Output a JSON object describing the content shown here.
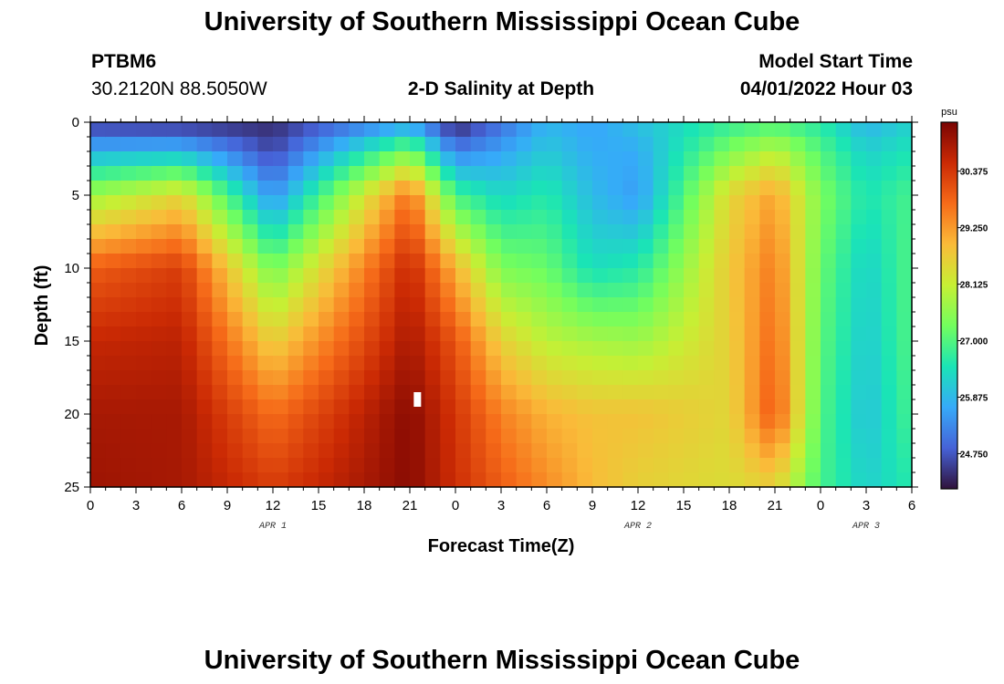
{
  "header": {
    "title": "University of Southern Mississippi Ocean Cube",
    "station_id": "PTBM6",
    "coordinates": "30.2120N  88.5050W",
    "plot_title": "2-D Salinity at Depth",
    "model_start_label": "Model Start Time",
    "model_start_value": "04/01/2022 Hour 03"
  },
  "footer": {
    "title": "University of Southern Mississippi Ocean Cube"
  },
  "chart_data": {
    "type": "heatmap",
    "title": "2-D Salinity at Depth",
    "xlabel": "Forecast Time(Z)",
    "ylabel": "Depth (ft)",
    "x_tick_labels": [
      "0",
      "3",
      "6",
      "9",
      "12",
      "15",
      "18",
      "21",
      "0",
      "3",
      "6",
      "9",
      "12",
      "15",
      "18",
      "21",
      "0",
      "3",
      "6"
    ],
    "x_range_hours": [
      0,
      54
    ],
    "date_labels": [
      {
        "text": "APR 1",
        "hour": 12
      },
      {
        "text": "APR 2",
        "hour": 36
      },
      {
        "text": "APR 3",
        "hour": 51
      }
    ],
    "y_ticks": [
      0,
      5,
      10,
      15,
      20,
      25
    ],
    "y_range_ft": [
      0,
      25
    ],
    "y_inverted": true,
    "colorbar": {
      "unit": "psu",
      "ticks": [
        "30.375",
        "29.250",
        "28.125",
        "27.000",
        "25.875",
        "24.750"
      ],
      "tick_values": [
        30.375,
        29.25,
        28.125,
        27.0,
        25.875,
        24.75
      ],
      "range": [
        24.05,
        31.35
      ],
      "colors": [
        "#30123b",
        "#4662d7",
        "#36aaf9",
        "#1ae4b6",
        "#72fe5e",
        "#c7ef34",
        "#fabb39",
        "#f66b19",
        "#cb2a04",
        "#7a0403"
      ]
    },
    "marker": {
      "hour": 21.5,
      "depth_ft": 19
    },
    "profiles_hours": [
      0,
      6,
      12,
      21,
      24,
      27,
      30,
      33,
      36,
      42,
      45,
      48,
      51,
      54
    ],
    "profiles_depths_ft": [
      0,
      2,
      5,
      10,
      15,
      20,
      25
    ],
    "profiles_psu": [
      [
        24.4,
        25.8,
        27.7,
        29.9,
        30.6,
        30.9,
        31.0
      ],
      [
        24.3,
        25.9,
        28.5,
        30.3,
        30.7,
        30.9,
        30.9
      ],
      [
        24.3,
        24.6,
        25.4,
        27.3,
        28.6,
        29.7,
        30.3
      ],
      [
        25.5,
        27.4,
        29.7,
        30.6,
        30.9,
        31.2,
        31.2
      ],
      [
        24.2,
        25.2,
        26.9,
        29.0,
        30.0,
        30.4,
        30.5
      ],
      [
        25.0,
        25.6,
        26.3,
        27.4,
        28.6,
        29.5,
        29.9
      ],
      [
        25.8,
        26.1,
        26.6,
        27.2,
        28.0,
        29.0,
        29.4
      ],
      [
        25.6,
        25.7,
        25.9,
        26.4,
        27.8,
        28.8,
        28.9
      ],
      [
        26.0,
        25.7,
        25.5,
        26.6,
        27.7,
        28.8,
        28.6
      ],
      [
        26.7,
        27.4,
        28.5,
        28.7,
        28.6,
        28.5,
        28.4
      ],
      [
        26.9,
        28.0,
        29.2,
        29.6,
        29.8,
        30.0,
        28.6
      ],
      [
        26.6,
        27.0,
        27.4,
        27.2,
        27.1,
        27.0,
        26.9
      ],
      [
        25.8,
        26.2,
        26.5,
        26.2,
        26.1,
        26.0,
        26.2
      ],
      [
        26.2,
        26.5,
        26.9,
        27.0,
        27.0,
        26.9,
        26.6
      ]
    ]
  }
}
